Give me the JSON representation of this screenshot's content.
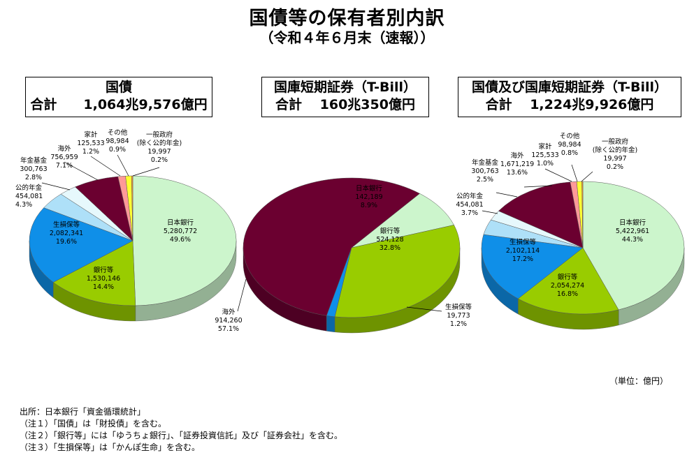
{
  "title": "国債等の保有者別内訳",
  "subtitle": "（令和４年６月末（速報））",
  "unit": "（単位：億円）",
  "notes": [
    "出所：日本銀行「資金循環統計」",
    "（注１）「国債」は「財投債」を含む。",
    "（注２）「銀行等」には「ゆうちょ銀行」、「証券投資信託」及び「証券会社」を含む。",
    "（注３）「生損保等」は「かんぽ生命」を含む。"
  ],
  "colors": {
    "日本銀行": "#ccf5cc",
    "銀行等": "#99cc00",
    "生損保等": "#0f8fe8",
    "公的年金": "#aee0f8",
    "年金基金": "#e6f8fc",
    "海外": "#6b0030",
    "家計": "#ff9999",
    "その他": "#ffff33",
    "一般政府": "#ff9933"
  },
  "chart_data": [
    {
      "type": "pie",
      "title": "国債",
      "total_label": "合計　　1,064兆9,576億円",
      "slices": [
        {
          "name": "日本銀行",
          "label": "日本銀行",
          "value": 5280772,
          "value_label": "5,280,772",
          "percent_label": "49.6%"
        },
        {
          "name": "銀行等",
          "label": "銀行等",
          "value": 1530146,
          "value_label": "1,530,146",
          "percent_label": "14.4%"
        },
        {
          "name": "生損保等",
          "label": "生損保等",
          "value": 2082341,
          "value_label": "2,082,341",
          "percent_label": "19.6%"
        },
        {
          "name": "公的年金",
          "label": "公的年金",
          "value": 454081,
          "value_label": "454,081",
          "percent_label": "4.3%"
        },
        {
          "name": "年金基金",
          "label": "年金基金",
          "value": 300763,
          "value_label": "300,763",
          "percent_label": "2.8%"
        },
        {
          "name": "海外",
          "label": "海外",
          "value": 756959,
          "value_label": "756,959",
          "percent_label": "7.1%"
        },
        {
          "name": "家計",
          "label": "家計",
          "value": 125533,
          "value_label": "125,533",
          "percent_label": "1.2%"
        },
        {
          "name": "その他",
          "label": "その他",
          "value": 98984,
          "value_label": "98,984",
          "percent_label": "0.9%"
        },
        {
          "name": "一般政府",
          "label": "一般政府\n(除く公的年金)",
          "value": 19997,
          "value_label": "19,997",
          "percent_label": "0.2%"
        }
      ]
    },
    {
      "type": "pie",
      "title": "国庫短期証券（T-Bill）",
      "total_label": "合計　 160兆350億円",
      "slices": [
        {
          "name": "日本銀行",
          "label": "日本銀行",
          "value": 142189,
          "value_label": "142,189",
          "percent_label": "8.9%"
        },
        {
          "name": "銀行等",
          "label": "銀行等",
          "value": 524128,
          "value_label": "524,128",
          "percent_label": "32.8%"
        },
        {
          "name": "生損保等",
          "label": "生損保等",
          "value": 19773,
          "value_label": "19,773",
          "percent_label": "1.2%"
        },
        {
          "name": "海外",
          "label": "海外",
          "value": 914260,
          "value_label": "914,260",
          "percent_label": "57.1%"
        }
      ]
    },
    {
      "type": "pie",
      "title": "国債及び国庫短期証券（T-Bill）",
      "total_label": "合計　 1,224兆9,926億円",
      "slices": [
        {
          "name": "日本銀行",
          "label": "日本銀行",
          "value": 5422961,
          "value_label": "5,422,961",
          "percent_label": "44.3%"
        },
        {
          "name": "銀行等",
          "label": "銀行等",
          "value": 2054274,
          "value_label": "2,054,274",
          "percent_label": "16.8%"
        },
        {
          "name": "生損保等",
          "label": "生損保等",
          "value": 2102114,
          "value_label": "2,102,114",
          "percent_label": "17.2%"
        },
        {
          "name": "公的年金",
          "label": "公的年金",
          "value": 454081,
          "value_label": "454,081",
          "percent_label": "3.7%"
        },
        {
          "name": "年金基金",
          "label": "年金基金",
          "value": 300763,
          "value_label": "300,763",
          "percent_label": "2.5%"
        },
        {
          "name": "海外",
          "label": "海外",
          "value": 1671219,
          "value_label": "1,671,219",
          "percent_label": "13.6%"
        },
        {
          "name": "家計",
          "label": "家計",
          "value": 125533,
          "value_label": "125,533",
          "percent_label": "1.0%"
        },
        {
          "name": "その他",
          "label": "その他",
          "value": 98984,
          "value_label": "98,984",
          "percent_label": "0.8%"
        },
        {
          "name": "一般政府",
          "label": "一般政府\n(除く公的年金)",
          "value": 19997,
          "value_label": "19,997",
          "percent_label": "0.2%"
        }
      ]
    }
  ]
}
